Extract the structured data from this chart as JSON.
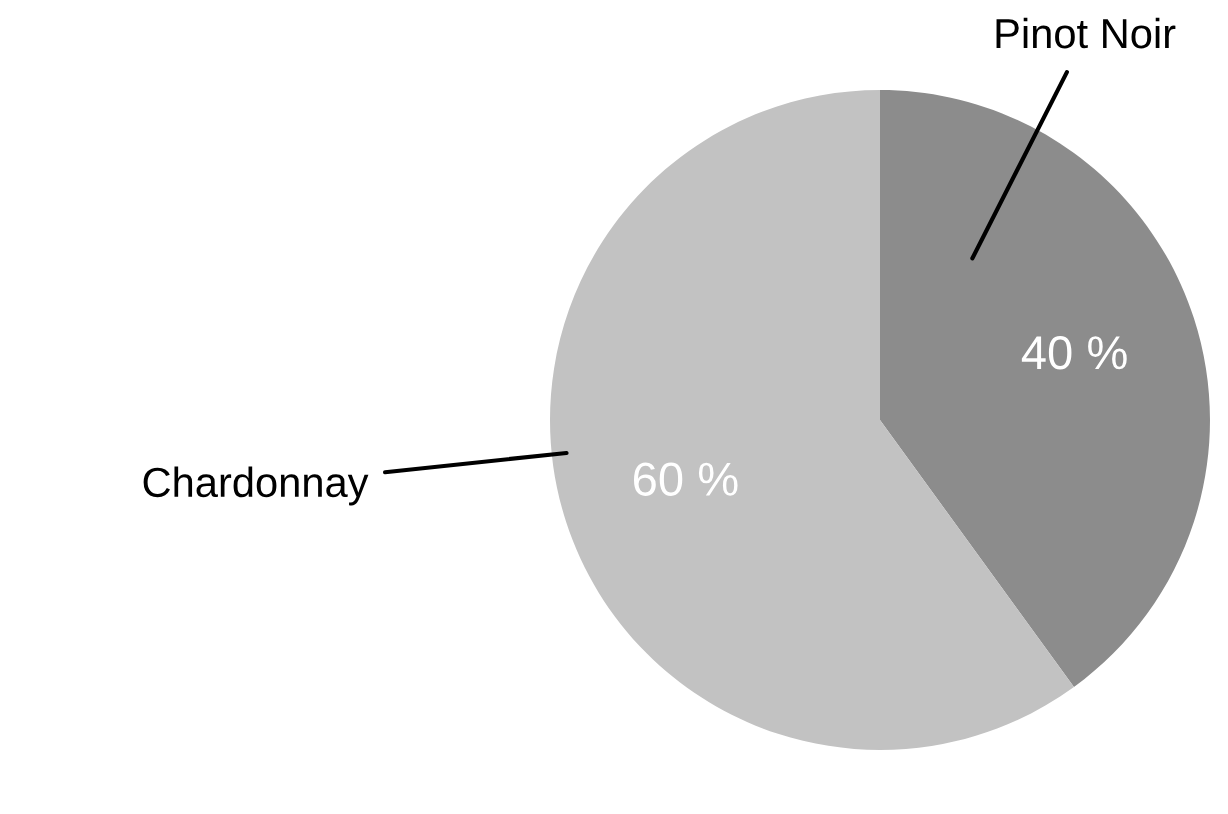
{
  "chart_data": {
    "type": "pie",
    "categories": [
      "Pinot Noir",
      "Chardonnay"
    ],
    "values": [
      40,
      60
    ],
    "colors": [
      "#8c8c8c",
      "#c2c2c2"
    ],
    "value_labels": [
      "40 %",
      "60 %"
    ],
    "legend": false
  }
}
